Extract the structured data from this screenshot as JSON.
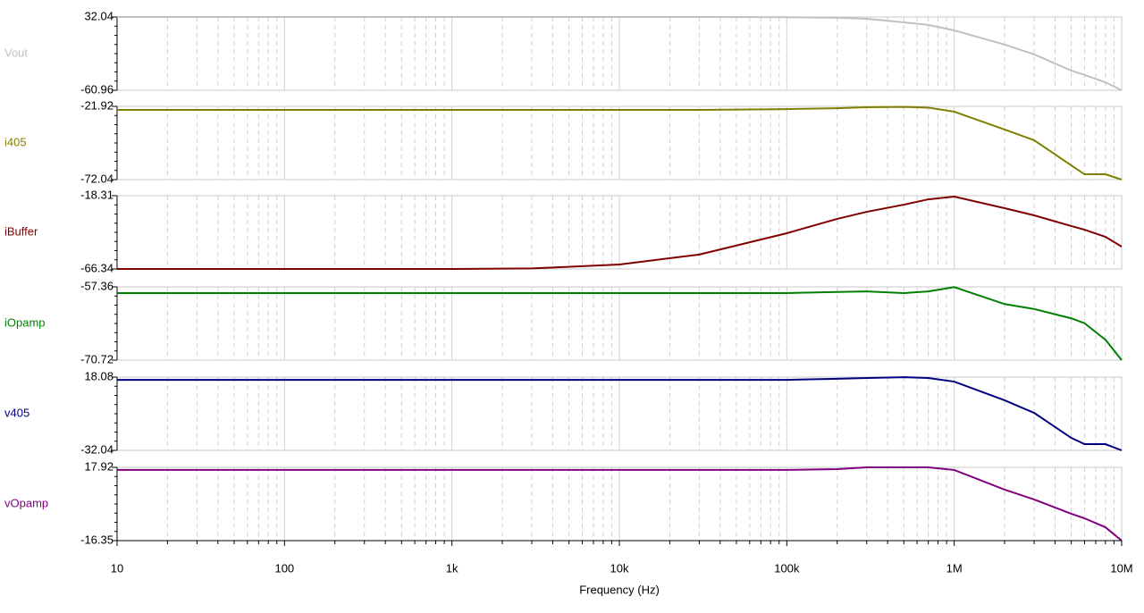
{
  "chart_data": [
    {
      "type": "line",
      "log_x": true,
      "xlim": [
        10,
        10000000
      ],
      "ylim": [
        -60.96,
        32.04
      ],
      "yticks": [
        -60.96,
        32.04
      ],
      "x": [
        10,
        100,
        1000,
        3000,
        10000,
        30000,
        100000,
        200000,
        300000,
        500000,
        700000,
        1000000,
        2000000,
        3000000,
        5000000,
        6000000,
        8000000,
        10000000
      ],
      "series": [
        {
          "name": "Vout",
          "color": "#c0c0c0",
          "values": [
            32,
            32,
            32,
            32,
            32,
            32,
            31.8,
            31,
            29.8,
            25.2,
            22,
            15,
            -3,
            -15.4,
            -36,
            -41.6,
            -50.8,
            -60.96
          ]
        }
      ]
    },
    {
      "type": "line",
      "log_x": true,
      "xlim": [
        10,
        10000000
      ],
      "ylim": [
        -72.04,
        -21.92
      ],
      "yticks": [
        -72.04,
        -21.92
      ],
      "x": [
        10,
        100,
        1000,
        3000,
        10000,
        30000,
        100000,
        200000,
        300000,
        500000,
        700000,
        1000000,
        2000000,
        3000000,
        5000000,
        6000000,
        8000000,
        10000000
      ],
      "series": [
        {
          "name": "i405",
          "color": "#808000",
          "values": [
            -24.4,
            -24.4,
            -24.4,
            -24.4,
            -24.4,
            -24.4,
            -23.8,
            -23.2,
            -22.5,
            -22.3,
            -22.8,
            -25.6,
            -37.8,
            -45.1,
            -62.3,
            -68.4,
            -68.4,
            -72.04
          ]
        }
      ]
    },
    {
      "type": "line",
      "log_x": true,
      "xlim": [
        10,
        10000000
      ],
      "ylim": [
        -66.34,
        -18.31
      ],
      "yticks": [
        -66.34,
        -18.31
      ],
      "x": [
        10,
        100,
        1000,
        3000,
        10000,
        30000,
        100000,
        200000,
        300000,
        500000,
        700000,
        1000000,
        2000000,
        3000000,
        5000000,
        6000000,
        8000000,
        10000000
      ],
      "series": [
        {
          "name": "iBuffer",
          "color": "#800000",
          "values": [
            -66.34,
            -66.34,
            -66.34,
            -66.0,
            -63.4,
            -56.9,
            -42.9,
            -33.5,
            -28.9,
            -24.2,
            -20.7,
            -18.9,
            -26.5,
            -31.2,
            -38.2,
            -40.6,
            -45.3,
            -51.7
          ]
        }
      ]
    },
    {
      "type": "line",
      "log_x": true,
      "xlim": [
        10,
        10000000
      ],
      "ylim": [
        -70.72,
        -57.36
      ],
      "yticks": [
        -70.72,
        -57.36
      ],
      "x": [
        10,
        100,
        1000,
        3000,
        10000,
        30000,
        100000,
        200000,
        300000,
        500000,
        700000,
        1000000,
        2000000,
        3000000,
        5000000,
        6000000,
        8000000,
        10000000
      ],
      "series": [
        {
          "name": "iOpamp",
          "color": "#008000",
          "values": [
            -58.5,
            -58.5,
            -58.5,
            -58.5,
            -58.5,
            -58.5,
            -58.5,
            -58.3,
            -58.2,
            -58.5,
            -58.2,
            -57.4,
            -60.5,
            -61.4,
            -63.1,
            -64.0,
            -67.0,
            -70.72
          ]
        }
      ]
    },
    {
      "type": "line",
      "log_x": true,
      "xlim": [
        10,
        10000000
      ],
      "ylim": [
        -32.04,
        18.08
      ],
      "yticks": [
        -32.04,
        18.08
      ],
      "x": [
        10,
        100,
        1000,
        3000,
        10000,
        30000,
        100000,
        200000,
        300000,
        500000,
        700000,
        1000000,
        2000000,
        3000000,
        5000000,
        6000000,
        8000000,
        10000000
      ],
      "series": [
        {
          "name": "v405",
          "color": "#000080",
          "values": [
            16.2,
            16.2,
            16.2,
            16.2,
            16.2,
            16.2,
            16.2,
            16.9,
            17.5,
            18.0,
            17.5,
            15.0,
            2.2,
            -6.4,
            -23.5,
            -27.8,
            -27.8,
            -32.04
          ]
        }
      ]
    },
    {
      "type": "line",
      "log_x": true,
      "xlim": [
        10,
        10000000
      ],
      "ylim": [
        -16.35,
        17.92
      ],
      "yticks": [
        -16.35,
        17.92
      ],
      "x": [
        10,
        100,
        1000,
        3000,
        10000,
        30000,
        100000,
        200000,
        300000,
        500000,
        700000,
        1000000,
        2000000,
        3000000,
        5000000,
        6000000,
        8000000,
        10000000
      ],
      "series": [
        {
          "name": "vOpamp",
          "color": "#800080",
          "values": [
            16.7,
            16.7,
            16.7,
            16.7,
            16.7,
            16.7,
            16.7,
            17.1,
            17.9,
            17.9,
            17.9,
            16.7,
            7.5,
            2.9,
            -3.8,
            -5.9,
            -10.1,
            -16.35
          ]
        }
      ],
      "xlabel": "Frequency (Hz)",
      "xticks": [
        10,
        100,
        {
          "value": 1000,
          "label": "1k"
        },
        {
          "value": 10000,
          "label": "10k"
        },
        {
          "value": 100000,
          "label": "100k"
        },
        {
          "value": 1000000,
          "label": "1M"
        },
        {
          "value": 10000000,
          "label": "10M"
        }
      ]
    }
  ]
}
